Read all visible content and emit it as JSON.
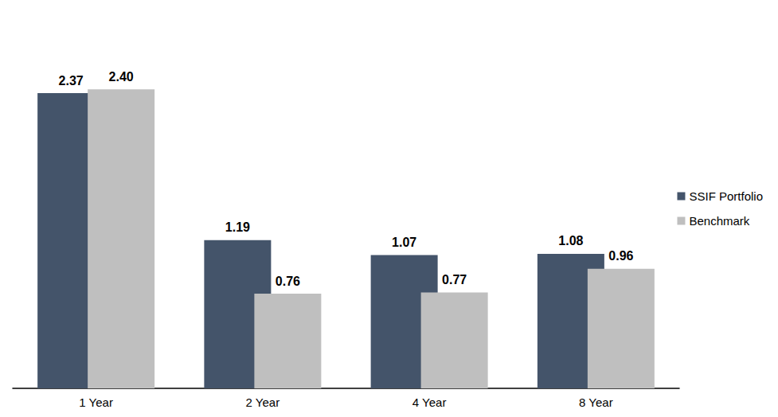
{
  "chart_data": {
    "type": "bar",
    "categories": [
      "1 Year",
      "2 Year",
      "4 Year",
      "8 Year"
    ],
    "series": [
      {
        "name": "SSIF Portfolio",
        "color": "#44546a",
        "values": [
          2.37,
          1.19,
          1.07,
          1.08
        ]
      },
      {
        "name": "Benchmark",
        "color": "#bfbfbf",
        "values": [
          2.4,
          0.76,
          0.77,
          0.96
        ],
        "value_labels": [
          "2.40",
          "0.76",
          "0.77",
          "0.96"
        ]
      }
    ],
    "ylim": [
      0,
      2.6
    ],
    "grid": false,
    "legend": "right",
    "data_labels": true,
    "tick_labels": "x"
  }
}
